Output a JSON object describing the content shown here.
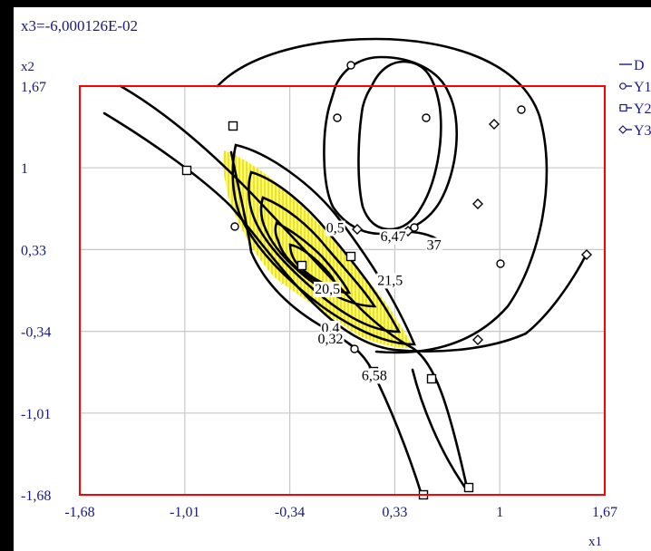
{
  "chart_data": {
    "type": "contour",
    "title": "x3=-6,000126E-02",
    "xlabel": "x1",
    "ylabel": "x2",
    "xlim": [
      -1.68,
      1.67
    ],
    "ylim": [
      -1.68,
      1.67
    ],
    "x_ticks": [
      {
        "value": -1.68,
        "label": "-1,68"
      },
      {
        "value": -1.01,
        "label": "-1,01"
      },
      {
        "value": -0.34,
        "label": "-0,34"
      },
      {
        "value": 0.33,
        "label": "0,33"
      },
      {
        "value": 1.0,
        "label": "1"
      },
      {
        "value": 1.67,
        "label": "1,67"
      }
    ],
    "y_ticks": [
      {
        "value": -1.68,
        "label": "-1,68"
      },
      {
        "value": -1.01,
        "label": "-1,01"
      },
      {
        "value": -0.34,
        "label": "-0,34"
      },
      {
        "value": 0.33,
        "label": "0,33"
      },
      {
        "value": 1.0,
        "label": "1"
      },
      {
        "value": 1.67,
        "label": "1,67"
      }
    ],
    "grid": true,
    "legend": {
      "placement": "right",
      "entries": [
        {
          "name": "D",
          "marker": "line"
        },
        {
          "name": "Y1",
          "marker": "circle"
        },
        {
          "name": "Y2",
          "marker": "square"
        },
        {
          "name": "Y3",
          "marker": "diamond"
        }
      ]
    },
    "feasible_region_color": "#ffff00",
    "plot_border_color": "#ff0000",
    "annotations": [
      {
        "text": "0,5",
        "x": -0.05,
        "y": 0.47
      },
      {
        "text": "6,47",
        "x": 0.32,
        "y": 0.4
      },
      {
        "text": "37",
        "x": 0.58,
        "y": 0.33
      },
      {
        "text": "21,5",
        "x": 0.3,
        "y": 0.04
      },
      {
        "text": "20,5",
        "x": -0.1,
        "y": -0.03
      },
      {
        "text": "0,4",
        "x": -0.08,
        "y": -0.35
      },
      {
        "text": "0,32",
        "x": -0.08,
        "y": -0.44
      },
      {
        "text": "6,58",
        "x": 0.2,
        "y": -0.74
      }
    ],
    "series": [
      {
        "name": "D",
        "type": "contour-lines",
        "levels_labelled": [
          "0,5",
          "20,5",
          "21,5",
          "0,4",
          "0,32"
        ]
      },
      {
        "name": "Y1",
        "type": "contour-lines",
        "levels_labelled": [
          "6,47",
          "6,58"
        ]
      },
      {
        "name": "Y2",
        "type": "contour-lines",
        "levels_labelled": []
      },
      {
        "name": "Y3",
        "type": "contour-lines",
        "levels_labelled": [
          "37"
        ]
      }
    ]
  }
}
